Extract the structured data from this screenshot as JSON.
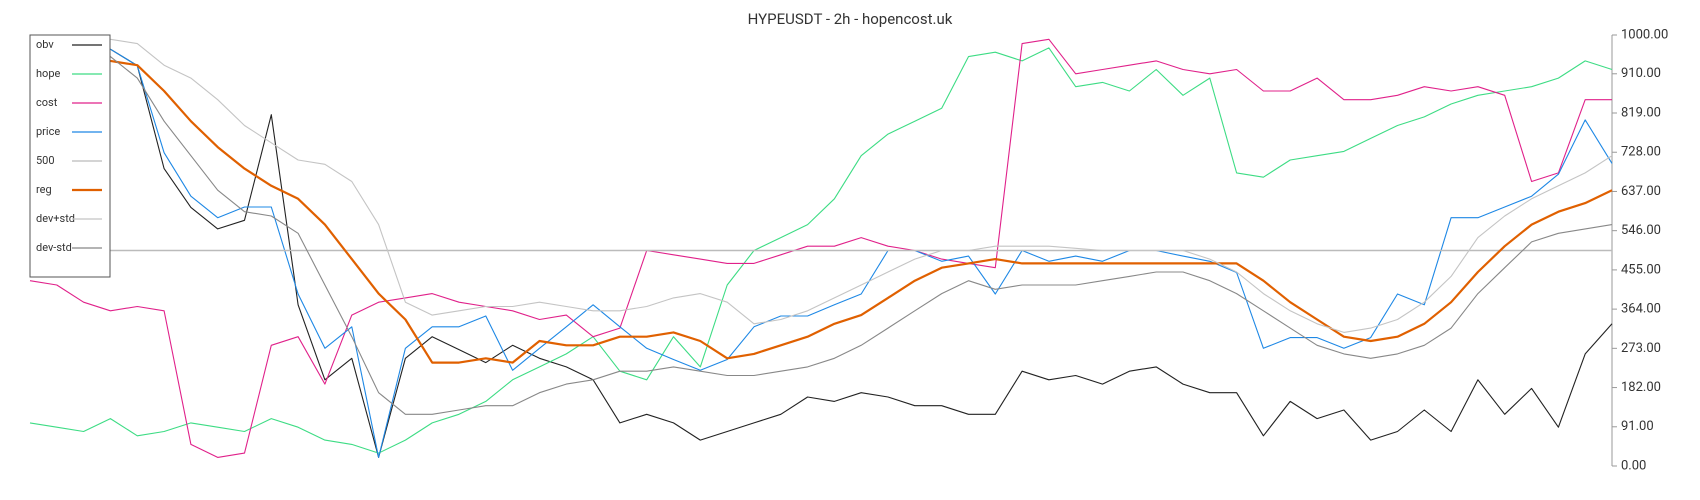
{
  "chart_data": {
    "type": "line",
    "title": "HYPEUSDT - 2h - hopencost.uk",
    "ylim": [
      0,
      1000
    ],
    "yticks": [
      {
        "value": 0,
        "label": "0.00"
      },
      {
        "value": 91,
        "label": "91.00"
      },
      {
        "value": 182,
        "label": "182.00"
      },
      {
        "value": 273,
        "label": "273.00"
      },
      {
        "value": 364,
        "label": "364.00"
      },
      {
        "value": 455,
        "label": "455.00"
      },
      {
        "value": 546,
        "label": "546.00"
      },
      {
        "value": 637,
        "label": "637.00"
      },
      {
        "value": 728,
        "label": "728.00"
      },
      {
        "value": 819,
        "label": "819.00"
      },
      {
        "value": 910,
        "label": "910.00"
      },
      {
        "value": 1000,
        "label": "1000.00"
      }
    ],
    "legend": "top-left",
    "series": [
      {
        "name": "obv",
        "color": "#222222",
        "values": [
          null,
          null,
          null,
          967,
          929,
          690,
          600,
          550,
          570,
          815,
          374,
          200,
          250,
          20,
          250,
          300,
          270,
          240,
          280,
          250,
          230,
          200,
          100,
          120,
          100,
          60,
          80,
          100,
          120,
          160,
          150,
          170,
          160,
          140,
          140,
          120,
          120,
          220,
          200,
          210,
          190,
          220,
          230,
          190,
          170,
          170,
          70,
          150,
          110,
          130,
          60,
          80,
          130,
          80,
          200,
          120,
          180,
          90,
          260,
          330
        ]
      },
      {
        "name": "hope",
        "color": "#3ddc84",
        "values": [
          100,
          90,
          80,
          110,
          70,
          80,
          100,
          90,
          80,
          110,
          90,
          60,
          50,
          30,
          60,
          100,
          120,
          150,
          200,
          230,
          260,
          300,
          220,
          200,
          300,
          230,
          420,
          500,
          530,
          560,
          620,
          720,
          770,
          800,
          830,
          950,
          960,
          940,
          970,
          880,
          890,
          870,
          920,
          860,
          900,
          680,
          670,
          710,
          720,
          730,
          760,
          790,
          810,
          840,
          860,
          870,
          880,
          900,
          940,
          920
        ]
      },
      {
        "name": "cost",
        "color": "#e0218a",
        "values": [
          430,
          420,
          380,
          360,
          370,
          360,
          50,
          20,
          30,
          280,
          300,
          190,
          350,
          380,
          390,
          400,
          380,
          370,
          360,
          340,
          350,
          300,
          320,
          500,
          490,
          480,
          470,
          470,
          490,
          510,
          510,
          530,
          510,
          500,
          480,
          470,
          460,
          980,
          990,
          910,
          920,
          930,
          940,
          920,
          910,
          920,
          870,
          870,
          900,
          850,
          850,
          860,
          880,
          870,
          880,
          860,
          660,
          680,
          850,
          850
        ]
      },
      {
        "name": "price",
        "color": "#1e88e5",
        "values": [
          null,
          null,
          null,
          967,
          929,
          727,
          626,
          576,
          601,
          601,
          399,
          273,
          323,
          20,
          273,
          323,
          323,
          348,
          222,
          273,
          323,
          374,
          323,
          273,
          247,
          222,
          247,
          323,
          348,
          348,
          374,
          399,
          500,
          500,
          475,
          487,
          399,
          500,
          475,
          487,
          475,
          500,
          500,
          487,
          475,
          449,
          273,
          298,
          298,
          273,
          298,
          399,
          374,
          576,
          576,
          601,
          626,
          677,
          803,
          702
        ]
      },
      {
        "name": "500",
        "color": "#bbbbbb",
        "value": 500
      },
      {
        "name": "reg",
        "color": "#e06000",
        "values": [
          null,
          null,
          null,
          940,
          930,
          870,
          800,
          740,
          690,
          650,
          620,
          560,
          480,
          400,
          340,
          240,
          240,
          250,
          240,
          290,
          280,
          280,
          300,
          300,
          310,
          290,
          250,
          260,
          280,
          300,
          330,
          350,
          390,
          430,
          460,
          470,
          480,
          470,
          470,
          470,
          470,
          470,
          470,
          470,
          470,
          470,
          430,
          380,
          340,
          300,
          290,
          300,
          330,
          380,
          450,
          510,
          560,
          590,
          610,
          640
        ]
      },
      {
        "name": "dev+std",
        "color": "#c4c4c4",
        "values": [
          null,
          null,
          null,
          990,
          980,
          930,
          900,
          850,
          790,
          750,
          710,
          700,
          660,
          560,
          380,
          350,
          360,
          370,
          370,
          380,
          370,
          360,
          360,
          370,
          390,
          400,
          380,
          330,
          340,
          360,
          390,
          420,
          450,
          480,
          500,
          500,
          510,
          510,
          510,
          505,
          500,
          500,
          500,
          500,
          480,
          450,
          400,
          360,
          330,
          310,
          320,
          340,
          380,
          440,
          530,
          580,
          620,
          650,
          680,
          720
        ]
      },
      {
        "name": "dev-std",
        "color": "#888888",
        "values": [
          null,
          null,
          null,
          950,
          900,
          800,
          720,
          640,
          590,
          580,
          540,
          420,
          300,
          170,
          120,
          120,
          130,
          140,
          140,
          170,
          190,
          200,
          220,
          220,
          230,
          220,
          210,
          210,
          220,
          230,
          250,
          280,
          320,
          360,
          400,
          430,
          410,
          420,
          420,
          420,
          430,
          440,
          450,
          450,
          430,
          400,
          360,
          320,
          280,
          260,
          250,
          260,
          280,
          320,
          400,
          460,
          520,
          540,
          550,
          560
        ]
      }
    ]
  }
}
